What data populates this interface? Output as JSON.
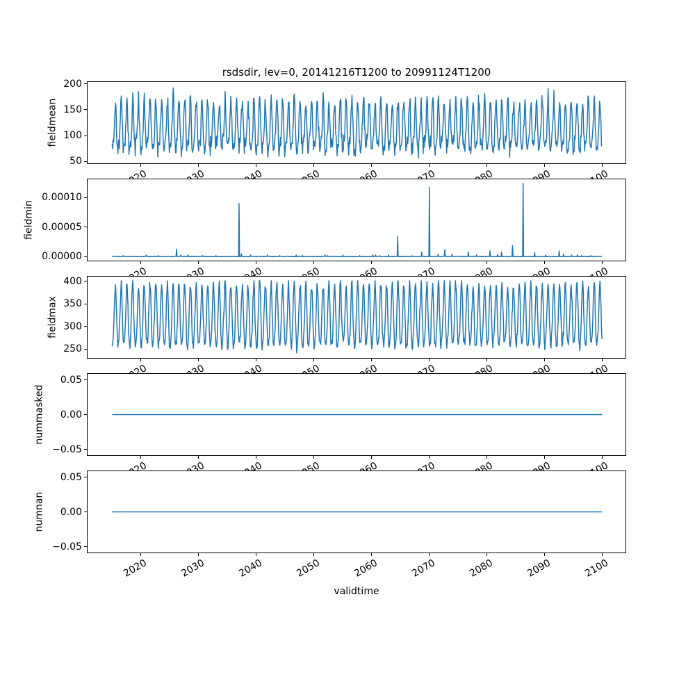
{
  "figure": {
    "title": "rsdsdir, lev=0, 20141216T1200 to 20991124T1200",
    "xlabel": "validtime",
    "line_color": "#1f77b4",
    "background": "#ffffff",
    "text_color": "#000000"
  },
  "x_axis": {
    "label": "validtime",
    "tick_labels": [
      "2020",
      "2030",
      "2040",
      "2050",
      "2060",
      "2070",
      "2080",
      "2090",
      "2100"
    ],
    "tick_values": [
      2020,
      2030,
      2040,
      2050,
      2060,
      2070,
      2080,
      2090,
      2100
    ],
    "xlim": [
      2010.7,
      2104.2
    ],
    "data_range": [
      2014.96,
      2099.9
    ],
    "tick_rotation_deg": 30
  },
  "chart_data": [
    {
      "type": "line",
      "name": "fieldmean",
      "ylabel": "fieldmean",
      "color": "#1f77b4",
      "x": "monthly 2014.96 to 2099.9",
      "ylim": [
        46,
        204
      ],
      "ytick_values": [
        200,
        150,
        100,
        50
      ],
      "ytick_labels": [
        "200",
        "150",
        "100",
        "50"
      ],
      "signal": {
        "kind": "seasonal-noisy",
        "samples_per_year": 12,
        "base": 112,
        "annual_amplitude": 45,
        "semiannual_amplitude": 13,
        "noise_sd": 9,
        "clip_min": 53,
        "clip_max": 196,
        "approx_min": 53,
        "approx_max": 196
      }
    },
    {
      "type": "line",
      "name": "fieldmin",
      "ylabel": "fieldmin",
      "color": "#1f77b4",
      "x": "monthly 2014.96 to 2099.9",
      "ylim": [
        -6.5e-06,
        0.0001305
      ],
      "ytick_values": [
        0.0001,
        5e-05,
        0
      ],
      "ytick_labels": [
        "0.00010",
        "0.00005",
        "0.00000"
      ],
      "signal": {
        "kind": "baseline-spikes",
        "baseline": 0,
        "baseline_jitter": 1e-06,
        "spikes": [
          [
            2016.9,
            2e-06
          ],
          [
            2020.9,
            3e-06
          ],
          [
            2023.0,
            2e-06
          ],
          [
            2026.1,
            1.3e-05
          ],
          [
            2026.9,
            3e-06
          ],
          [
            2028.1,
            3e-06
          ],
          [
            2030.6,
            2e-06
          ],
          [
            2033.0,
            2e-06
          ],
          [
            2036.96,
            9e-05
          ],
          [
            2037.35,
            5e-06
          ],
          [
            2039.0,
            3e-06
          ],
          [
            2041.9,
            3e-06
          ],
          [
            2044.0,
            2e-06
          ],
          [
            2046.9,
            3e-06
          ],
          [
            2048.0,
            2e-06
          ],
          [
            2051.9,
            3e-06
          ],
          [
            2052.3,
            2e-06
          ],
          [
            2055.0,
            3e-06
          ],
          [
            2057.9,
            2e-06
          ],
          [
            2060.1,
            3e-06
          ],
          [
            2060.6,
            3e-06
          ],
          [
            2061.3,
            2e-06
          ],
          [
            2062.9,
            3e-06
          ],
          [
            2064.5,
            3.4e-05
          ],
          [
            2066.9,
            2e-06
          ],
          [
            2068.6,
            8e-06
          ],
          [
            2070.0,
            0.000117
          ],
          [
            2071.5,
            4e-06
          ],
          [
            2072.6,
            1.2e-05
          ],
          [
            2073.9,
            4e-06
          ],
          [
            2076.7,
            8e-06
          ],
          [
            2078.1,
            3e-06
          ],
          [
            2080.5,
            1e-05
          ],
          [
            2081.8,
            4e-06
          ],
          [
            2082.5,
            8e-06
          ],
          [
            2084.4,
            1.9e-05
          ],
          [
            2086.2,
            0.000124
          ],
          [
            2088.2,
            7e-06
          ],
          [
            2090.1,
            3e-06
          ],
          [
            2092.5,
            1e-05
          ],
          [
            2093.2,
            4e-06
          ],
          [
            2094.6,
            3e-06
          ],
          [
            2095.6,
            3e-06
          ],
          [
            2096.4,
            2e-06
          ],
          [
            2098.0,
            2e-06
          ]
        ]
      }
    },
    {
      "type": "line",
      "name": "fieldmax",
      "ylabel": "fieldmax",
      "color": "#1f77b4",
      "x": "monthly 2014.96 to 2099.9",
      "ylim": [
        230,
        410
      ],
      "ytick_values": [
        400,
        350,
        300,
        250
      ],
      "ytick_labels": [
        "400",
        "350",
        "300",
        "250"
      ],
      "signal": {
        "kind": "seasonal-noisy",
        "samples_per_year": 12,
        "base": 318,
        "annual_amplitude": 68,
        "semiannual_amplitude": 9,
        "noise_sd": 7,
        "clip_min": 236,
        "clip_max": 401,
        "approx_min": 236,
        "approx_max": 401
      }
    },
    {
      "type": "line",
      "name": "nummasked",
      "ylabel": "nummasked",
      "color": "#1f77b4",
      "x": "2014.96 to 2099.9",
      "ylim": [
        -0.0585,
        0.0585
      ],
      "ytick_values": [
        0.05,
        0,
        -0.05
      ],
      "ytick_labels": [
        "0.05",
        "0.00",
        "−0.05"
      ],
      "signal": {
        "kind": "constant",
        "value": 0
      }
    },
    {
      "type": "line",
      "name": "numnan",
      "ylabel": "numnan",
      "color": "#1f77b4",
      "x": "2014.96 to 2099.9",
      "ylim": [
        -0.0585,
        0.0585
      ],
      "ytick_values": [
        0.05,
        0,
        -0.05
      ],
      "ytick_labels": [
        "0.05",
        "0.00",
        "−0.05"
      ],
      "signal": {
        "kind": "constant",
        "value": 0
      }
    }
  ]
}
